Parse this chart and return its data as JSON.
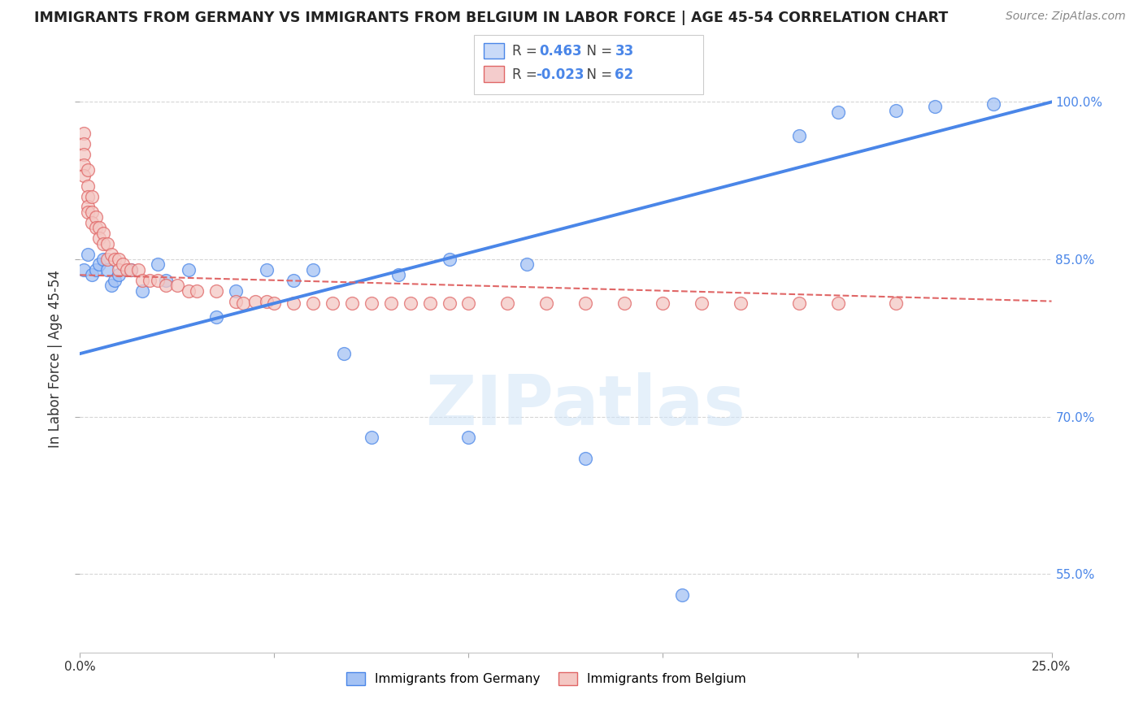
{
  "title": "IMMIGRANTS FROM GERMANY VS IMMIGRANTS FROM BELGIUM IN LABOR FORCE | AGE 45-54 CORRELATION CHART",
  "source": "Source: ZipAtlas.com",
  "ylabel": "In Labor Force | Age 45-54",
  "x_min": 0.0,
  "x_max": 0.25,
  "y_min": 0.475,
  "y_max": 1.035,
  "y_ticks": [
    0.55,
    0.7,
    0.85,
    1.0
  ],
  "y_tick_labels": [
    "55.0%",
    "70.0%",
    "85.0%",
    "100.0%"
  ],
  "watermark": "ZIPatlas",
  "germany_R": 0.463,
  "germany_N": 33,
  "belgium_R": -0.023,
  "belgium_N": 62,
  "germany_color": "#a4c2f4",
  "belgium_color": "#f4c7c3",
  "germany_edge_color": "#4a86e8",
  "belgium_edge_color": "#e06666",
  "germany_line_color": "#4a86e8",
  "belgium_line_color": "#e06666",
  "legend_box_blue": "#c9daf8",
  "legend_box_pink": "#f4cccc",
  "germany_x": [
    0.001,
    0.001,
    0.002,
    0.003,
    0.004,
    0.005,
    0.006,
    0.007,
    0.008,
    0.009,
    0.01,
    0.011,
    0.013,
    0.016,
    0.02,
    0.022,
    0.025,
    0.03,
    0.035,
    0.038,
    0.042,
    0.048,
    0.055,
    0.06,
    0.07,
    0.075,
    0.085,
    0.095,
    0.1,
    0.13,
    0.155,
    0.185,
    0.22
  ],
  "germany_y": [
    0.845,
    0.855,
    0.86,
    0.87,
    0.835,
    0.84,
    0.855,
    0.84,
    0.83,
    0.845,
    0.835,
    0.825,
    0.84,
    0.84,
    0.845,
    0.83,
    0.79,
    0.84,
    0.82,
    0.84,
    0.795,
    0.83,
    0.815,
    0.835,
    0.84,
    0.75,
    0.855,
    0.85,
    0.68,
    0.66,
    0.53,
    0.97,
    0.995
  ],
  "belgium_x": [
    0.001,
    0.001,
    0.001,
    0.001,
    0.001,
    0.002,
    0.002,
    0.002,
    0.002,
    0.003,
    0.003,
    0.003,
    0.004,
    0.004,
    0.005,
    0.005,
    0.006,
    0.006,
    0.007,
    0.007,
    0.007,
    0.008,
    0.009,
    0.01,
    0.01,
    0.011,
    0.012,
    0.013,
    0.015,
    0.016,
    0.018,
    0.02,
    0.022,
    0.025,
    0.028,
    0.03,
    0.035,
    0.04,
    0.042,
    0.045,
    0.048,
    0.05,
    0.055,
    0.06,
    0.065,
    0.07,
    0.075,
    0.08,
    0.085,
    0.09,
    0.095,
    0.1,
    0.11,
    0.12,
    0.13,
    0.14,
    0.15,
    0.16,
    0.17,
    0.185,
    0.195,
    0.21
  ],
  "belgium_y": [
    0.97,
    0.96,
    0.955,
    0.945,
    0.935,
    0.94,
    0.93,
    0.92,
    0.91,
    0.92,
    0.905,
    0.895,
    0.895,
    0.885,
    0.89,
    0.88,
    0.885,
    0.87,
    0.875,
    0.86,
    0.85,
    0.855,
    0.855,
    0.85,
    0.84,
    0.845,
    0.84,
    0.84,
    0.84,
    0.83,
    0.83,
    0.83,
    0.825,
    0.825,
    0.82,
    0.82,
    0.82,
    0.81,
    0.81,
    0.815,
    0.815,
    0.808,
    0.81,
    0.808,
    0.81,
    0.808,
    0.81,
    0.81,
    0.808,
    0.81,
    0.808,
    0.815,
    0.812,
    0.81,
    0.81,
    0.808,
    0.81,
    0.812,
    0.81,
    0.808,
    0.81,
    0.81
  ]
}
